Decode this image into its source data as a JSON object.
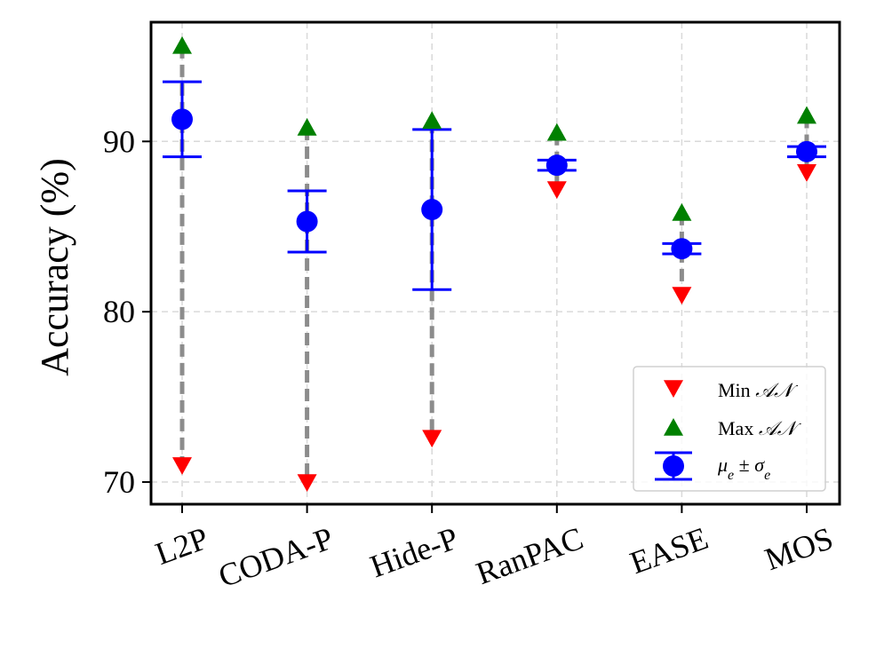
{
  "chart_data": {
    "type": "scatter",
    "title": "",
    "xlabel": "",
    "ylabel": "Accuracy (%)",
    "ylim": [
      68.7,
      97.0
    ],
    "yticks": [
      70,
      80,
      90
    ],
    "grid": true,
    "legend_position": "bottom-right",
    "categories": [
      "L2P",
      "CODA-P",
      "Hide-P",
      "RanPAC",
      "EASE",
      "MOS"
    ],
    "series": [
      {
        "name": "Min 𝒜𝒩",
        "marker": "triangle-down",
        "color": "#ff0000",
        "values": [
          71.0,
          70.0,
          72.6,
          87.2,
          81.0,
          88.2
        ]
      },
      {
        "name": "Max 𝒜𝒩",
        "marker": "triangle-up",
        "color": "#008000",
        "values": [
          95.6,
          90.8,
          91.2,
          90.5,
          85.8,
          91.5
        ]
      },
      {
        "name": "μe ± σe",
        "marker": "circle-errorbar",
        "color": "#0000ff",
        "values": [
          91.3,
          85.3,
          86.0,
          88.6,
          83.7,
          89.4
        ],
        "errors": [
          2.2,
          1.8,
          4.7,
          0.3,
          0.3,
          0.3
        ]
      }
    ],
    "range_line_color": "#8c8c8c",
    "legend": {
      "min": {
        "label": "Min ",
        "symbol": "𝒜𝒩"
      },
      "max": {
        "label": "Max ",
        "symbol": "𝒜𝒩"
      },
      "mean": {
        "mu": "μ",
        "mu_sub": "e",
        "pm": " ± ",
        "sigma": "σ",
        "sigma_sub": "e"
      }
    }
  }
}
